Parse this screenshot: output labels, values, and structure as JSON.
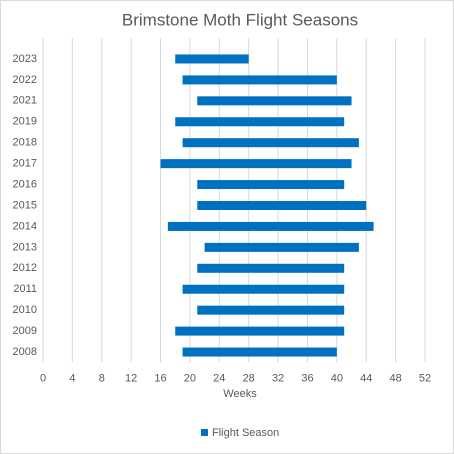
{
  "chart_data": {
    "type": "floating-bar",
    "title": "Brimstone Moth Flight Seasons",
    "x_label": "Weeks",
    "categories": [
      "2008",
      "2009",
      "2010",
      "2011",
      "2012",
      "2013",
      "2014",
      "2015",
      "2016",
      "2017",
      "2018",
      "2019",
      "2021",
      "2022",
      "2023"
    ],
    "series": [
      {
        "name": "Flight Season",
        "color": "#0070c0",
        "start": [
          19,
          18,
          21,
          19,
          21,
          22,
          17,
          21,
          21,
          16,
          19,
          18,
          21,
          19,
          18
        ],
        "end": [
          40,
          41,
          41,
          41,
          41,
          43,
          45,
          44,
          41,
          42,
          43,
          41,
          42,
          40,
          28
        ]
      }
    ],
    "xlim": [
      0,
      52
    ],
    "xticks": [
      0,
      4,
      8,
      12,
      16,
      20,
      24,
      28,
      32,
      36,
      40,
      44,
      48,
      52
    ],
    "grid": true,
    "legend": "bottom"
  }
}
